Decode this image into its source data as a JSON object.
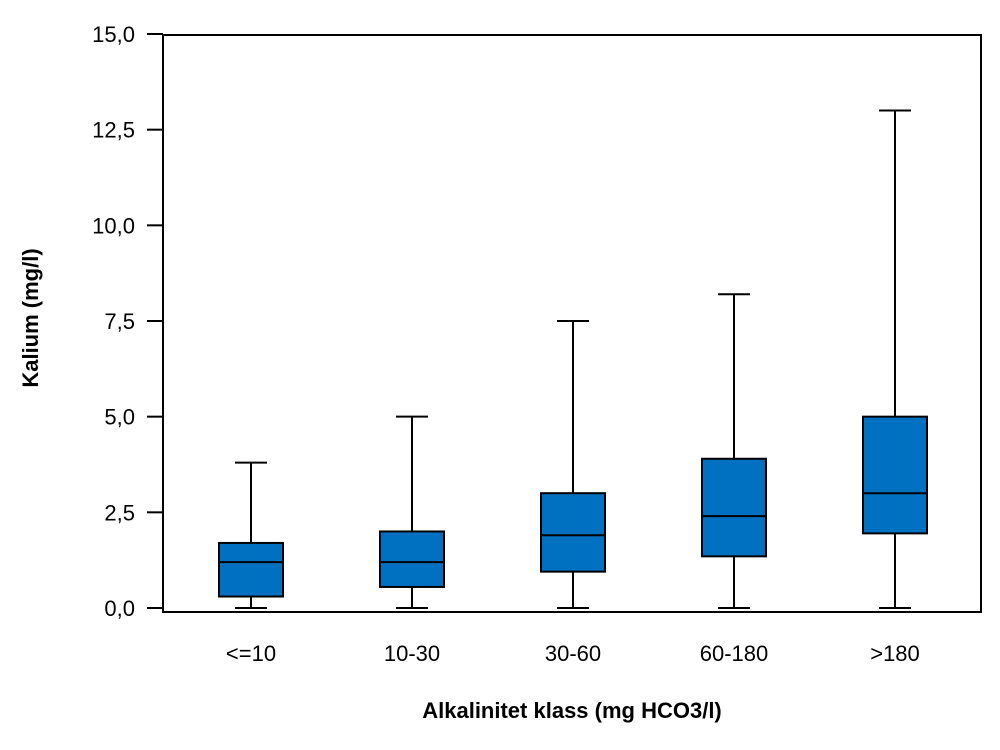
{
  "chart_data": {
    "type": "boxplot",
    "title": "",
    "xlabel": "Alkalinitet klass (mg HCO3/l)",
    "ylabel": "Kalium (mg/l)",
    "ylim": [
      0,
      15
    ],
    "yticks": [
      "0,0",
      "2,5",
      "5,0",
      "7,5",
      "10,0",
      "12,5",
      "15,0"
    ],
    "ytick_values": [
      0,
      2.5,
      5,
      7.5,
      10,
      12.5,
      15
    ],
    "categories": [
      "<=10",
      "10-30",
      "30-60",
      "60-180",
      ">180"
    ],
    "boxes": [
      {
        "category": "<=10",
        "min": 0.0,
        "q1": 0.3,
        "median": 1.2,
        "q3": 1.7,
        "max": 3.8
      },
      {
        "category": "10-30",
        "min": 0.0,
        "q1": 0.55,
        "median": 1.2,
        "q3": 2.0,
        "max": 5.0
      },
      {
        "category": "30-60",
        "min": 0.0,
        "q1": 0.95,
        "median": 1.9,
        "q3": 3.0,
        "max": 7.5
      },
      {
        "category": "60-180",
        "min": 0.0,
        "q1": 1.35,
        "median": 2.4,
        "q3": 3.9,
        "max": 8.2
      },
      {
        "category": ">180",
        "min": 0.0,
        "q1": 1.95,
        "median": 3.0,
        "q3": 5.0,
        "max": 13.0
      }
    ],
    "grid": false,
    "legend": "none",
    "colors": {
      "box_fill": "#0070c0",
      "stroke": "#000000"
    }
  }
}
